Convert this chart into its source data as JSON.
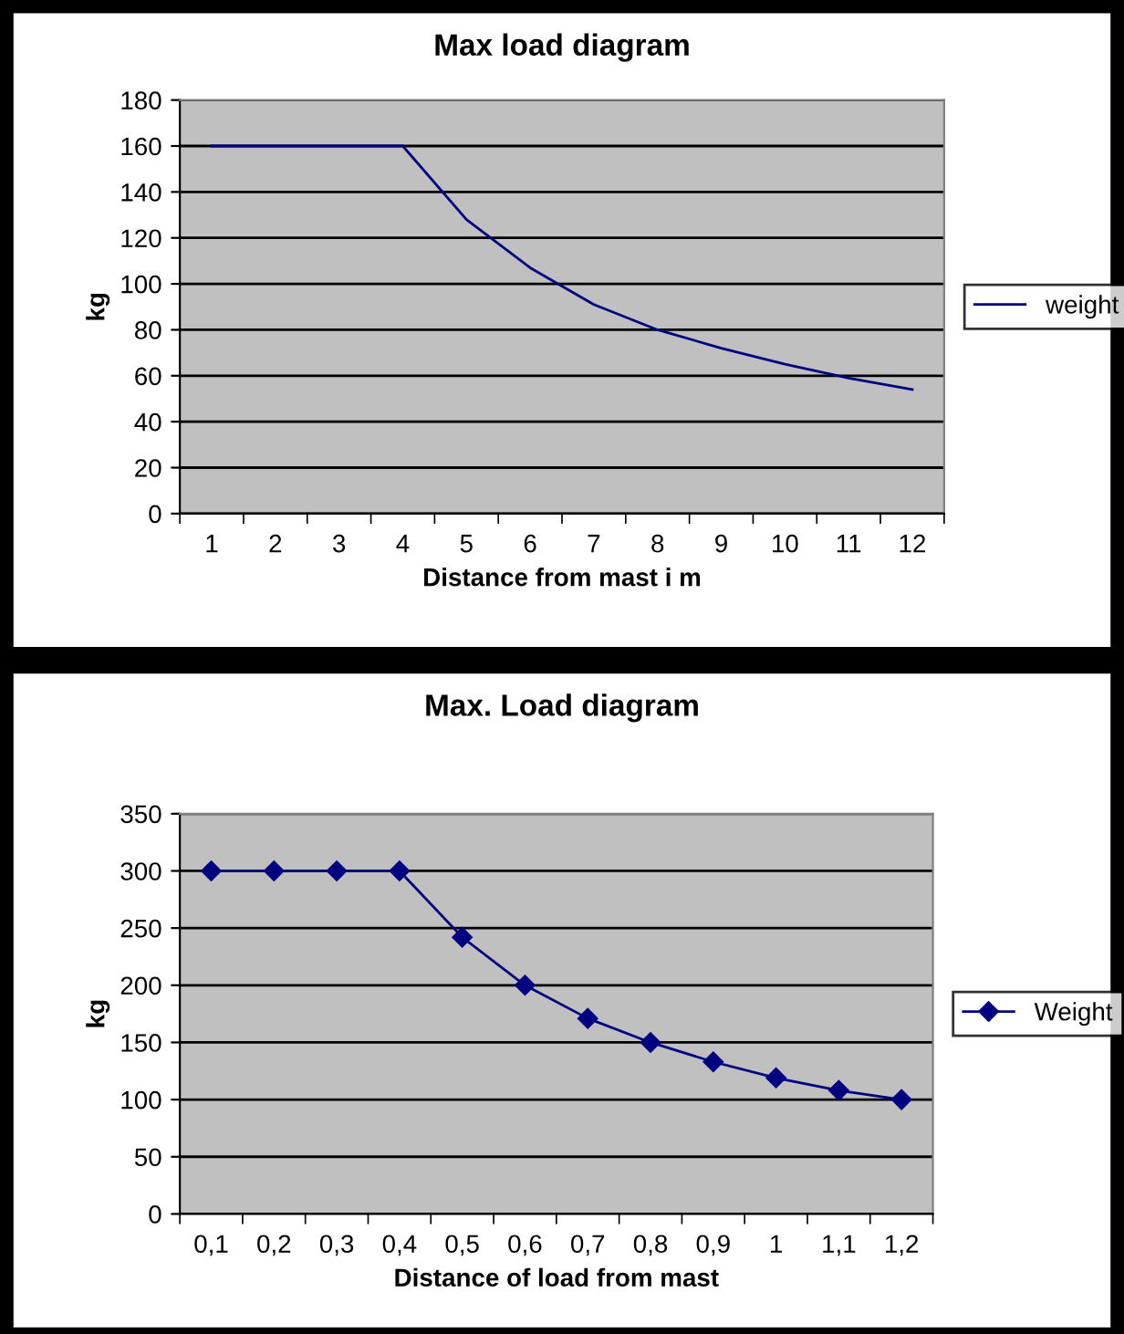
{
  "chart_data": [
    {
      "type": "line",
      "title": "Max load diagram",
      "xlabel": "Distance from mast i m",
      "ylabel": "kg",
      "categories": [
        "1",
        "2",
        "3",
        "4",
        "5",
        "6",
        "7",
        "8",
        "9",
        "10",
        "11",
        "12"
      ],
      "series": [
        {
          "name": "weight",
          "color": "#000080",
          "values": [
            160,
            160,
            160,
            160,
            128,
            107,
            91,
            80,
            72,
            65,
            59,
            54
          ]
        }
      ],
      "ylim": [
        0,
        180
      ],
      "yticks": [
        0,
        20,
        40,
        60,
        80,
        100,
        120,
        140,
        160,
        180
      ],
      "grid": "y",
      "legend": "right",
      "marker": "none"
    },
    {
      "type": "line",
      "title": "Max. Load diagram",
      "xlabel": "Distance of load from mast",
      "ylabel": "kg",
      "categories": [
        "0,1",
        "0,2",
        "0,3",
        "0,4",
        "0,5",
        "0,6",
        "0,7",
        "0,8",
        "0,9",
        "1",
        "1,1",
        "1,2"
      ],
      "series": [
        {
          "name": "Weight",
          "color": "#000080",
          "values": [
            300,
            300,
            300,
            300,
            242,
            200,
            171,
            150,
            133,
            119,
            108,
            100
          ]
        }
      ],
      "ylim": [
        0,
        350
      ],
      "yticks": [
        0,
        50,
        100,
        150,
        200,
        250,
        300,
        350
      ],
      "grid": "y",
      "legend": "right",
      "marker": "diamond"
    }
  ]
}
